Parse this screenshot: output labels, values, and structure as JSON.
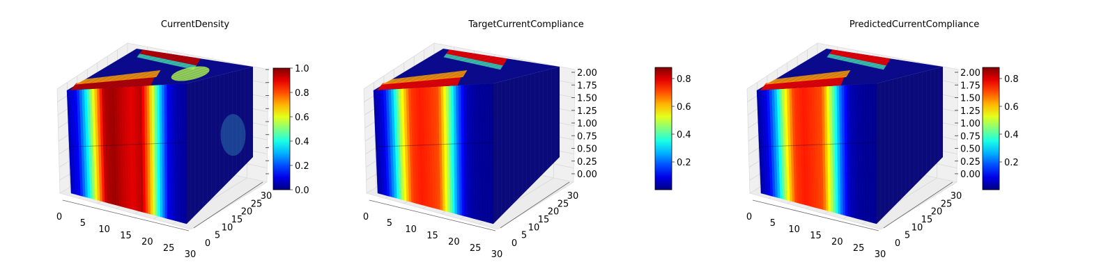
{
  "chart_data": [
    {
      "type": "voxel-3d",
      "title": "CurrentDensity",
      "x_ticks": [
        "0",
        "5",
        "10",
        "15",
        "20",
        "25",
        "30"
      ],
      "y_ticks": [
        "0",
        "5",
        "10",
        "15",
        "20",
        "25",
        "30"
      ],
      "z_ticks": [],
      "colorbar": {
        "min": 0.0,
        "max": 1.0,
        "ticks": [
          "0.0",
          "0.2",
          "0.4",
          "0.6",
          "0.8",
          "1.0"
        ],
        "colormap": "jet"
      },
      "front_profile_x": [
        0.05,
        0.12,
        0.35,
        0.65,
        0.95,
        0.97,
        0.93,
        0.9,
        0.94,
        0.7,
        0.35,
        0.1,
        0.04,
        0.03
      ]
    },
    {
      "type": "voxel-3d",
      "title": "TargetCurrentCompliance",
      "x_ticks": [
        "0",
        "5",
        "10",
        "15",
        "20",
        "25",
        "30"
      ],
      "y_ticks": [
        "0",
        "5",
        "10",
        "15",
        "20",
        "25",
        "30"
      ],
      "z_ticks": [
        "0.00",
        "0.25",
        "0.50",
        "0.75",
        "1.00",
        "1.25",
        "1.50",
        "1.75",
        "2.00"
      ],
      "colorbar": {
        "min": 0.0,
        "max": 0.88,
        "ticks": [
          "0.2",
          "0.4",
          "0.6",
          "0.8"
        ],
        "colormap": "jet"
      },
      "front_profile_x": [
        0.03,
        0.1,
        0.3,
        0.6,
        0.82,
        0.85,
        0.83,
        0.8,
        0.55,
        0.25,
        0.06,
        0.03,
        0.02,
        0.02
      ]
    },
    {
      "type": "voxel-3d",
      "title": "PredictedCurrentCompliance",
      "x_ticks": [
        "0",
        "5",
        "10",
        "15",
        "20",
        "25",
        "30"
      ],
      "y_ticks": [
        "0",
        "5",
        "10",
        "15",
        "20",
        "25",
        "30"
      ],
      "z_ticks": [
        "0.00",
        "0.25",
        "0.50",
        "0.75",
        "1.00",
        "1.25",
        "1.50",
        "1.75",
        "2.00"
      ],
      "colorbar": {
        "min": 0.0,
        "max": 0.88,
        "ticks": [
          "0.2",
          "0.4",
          "0.6",
          "0.8"
        ],
        "colormap": "jet"
      },
      "front_profile_x": [
        0.03,
        0.1,
        0.3,
        0.6,
        0.82,
        0.85,
        0.83,
        0.8,
        0.55,
        0.25,
        0.06,
        0.03,
        0.02,
        0.02
      ]
    }
  ]
}
